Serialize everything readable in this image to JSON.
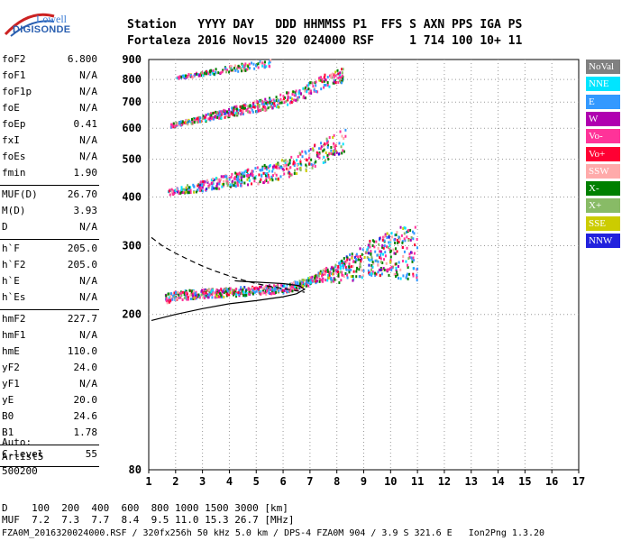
{
  "logo": {
    "lowell": "Lowell",
    "digisonde": "DIGISONDE"
  },
  "header": {
    "line1": "Station   YYYY DAY   DDD HHMMSS P1  FFS S AXN PPS IGA PS",
    "line2": "Fortaleza 2016 Nov15 320 024000 RSF     1 714 100 10+ 11"
  },
  "params": [
    {
      "name": "foF2",
      "value": "6.800"
    },
    {
      "name": "foF1",
      "value": "N/A"
    },
    {
      "name": "foF1p",
      "value": "N/A"
    },
    {
      "name": "foE",
      "value": "N/A"
    },
    {
      "name": "foEp",
      "value": "0.41"
    },
    {
      "name": "fxI",
      "value": "N/A"
    },
    {
      "name": "foEs",
      "value": "N/A"
    },
    {
      "name": "fmin",
      "value": "1.90"
    },
    {
      "name": "MUF(D)",
      "value": "26.70"
    },
    {
      "name": "M(D)",
      "value": "3.93"
    },
    {
      "name": "D",
      "value": "N/A"
    },
    {
      "name": "h`F",
      "value": "205.0"
    },
    {
      "name": "h`F2",
      "value": "205.0"
    },
    {
      "name": "h`E",
      "value": "N/A"
    },
    {
      "name": "h`Es",
      "value": "N/A"
    },
    {
      "name": "hmF2",
      "value": "227.7"
    },
    {
      "name": "hmF1",
      "value": "N/A"
    },
    {
      "name": "hmE",
      "value": "110.0"
    },
    {
      "name": "yF2",
      "value": "24.0"
    },
    {
      "name": "yF1",
      "value": "N/A"
    },
    {
      "name": "yE",
      "value": "20.0"
    },
    {
      "name": "B0",
      "value": "24.6"
    },
    {
      "name": "B1",
      "value": "1.78"
    },
    {
      "name": "C-level",
      "value": "55"
    }
  ],
  "autoscaling": {
    "label": "Auto:",
    "name": "Artist5",
    "code": "500200"
  },
  "legend": [
    {
      "label": "NoVal",
      "color": "#808080"
    },
    {
      "label": "NNE",
      "color": "#00e5ff"
    },
    {
      "label": "E",
      "color": "#3399ff"
    },
    {
      "label": "W",
      "color": "#b000b0"
    },
    {
      "label": "Vo-",
      "color": "#ff3399"
    },
    {
      "label": "Vo+",
      "color": "#ff0033"
    },
    {
      "label": "SSW",
      "color": "#ffaaaa"
    },
    {
      "label": "X-",
      "color": "#008000"
    },
    {
      "label": "X+",
      "color": "#88bb66"
    },
    {
      "label": "SSE",
      "color": "#cccc00"
    },
    {
      "label": "NNW",
      "color": "#2222dd"
    }
  ],
  "footer": {
    "line1": "D    100  200  400  600  800 1000 1500 3000 [km]",
    "line2": "MUF  7.2  7.3  7.7  8.4  9.5 11.0 15.3 26.7 [MHz]",
    "line3": "FZA0M_2016320024000.RSF / 320fx256h 50 kHz 5.0 km / DPS-4 FZA0M 904 / 3.9 S 321.6 E   Ion2Png 1.3.20"
  },
  "chart_data": {
    "type": "scatter",
    "title": "",
    "xlabel": "",
    "ylabel": "",
    "xlim": [
      1,
      17
    ],
    "ylim": [
      80,
      900
    ],
    "y_scale": "log",
    "x_ticks": [
      1,
      2,
      3,
      4,
      5,
      6,
      7,
      8,
      9,
      10,
      11,
      12,
      13,
      14,
      15,
      16,
      17
    ],
    "y_ticks": [
      80,
      200,
      300,
      400,
      500,
      600,
      700,
      800,
      900
    ],
    "grid": "dotted",
    "profile_curve": {
      "x": [
        1.1,
        2,
        3,
        4,
        5,
        6,
        6.5,
        6.8,
        6.6,
        6.0,
        5.5,
        5.0,
        4.5,
        4.2
      ],
      "y": [
        193,
        200,
        207,
        213,
        217,
        222,
        226,
        232,
        237,
        240,
        241,
        242,
        243,
        244
      ]
    },
    "profile_dashed": {
      "x": [
        1.1,
        1.5,
        2,
        2.5,
        3,
        3.5,
        4,
        4.5,
        5,
        5.5,
        6,
        6.5,
        6.8
      ],
      "y": [
        315,
        300,
        287,
        276,
        266,
        258,
        251,
        245,
        240,
        236,
        233,
        230,
        228
      ]
    },
    "traces": [
      {
        "name": "F2 first hop",
        "x": [
          1.6,
          2,
          3,
          4,
          5,
          6,
          6.5,
          7,
          7.5,
          8,
          8.5,
          9,
          9.5,
          10,
          11
        ],
        "y": [
          222,
          226,
          229,
          231,
          233,
          236,
          240,
          247,
          256,
          262,
          271,
          284,
          292,
          300,
          305
        ]
      },
      {
        "name": "F2 second hop",
        "x": [
          1.7,
          2.5,
          3.5,
          4.5,
          5.5,
          6.5,
          7.5,
          8.3
        ],
        "y": [
          415,
          425,
          440,
          455,
          470,
          495,
          535,
          575
        ]
      },
      {
        "name": "F2 third hop",
        "x": [
          1.8,
          2.5,
          3.5,
          4.5,
          5.5,
          6.5,
          7.5,
          8.2
        ],
        "y": [
          615,
          630,
          655,
          680,
          705,
          740,
          800,
          830
        ]
      },
      {
        "name": "F2 fourth hop",
        "x": [
          2,
          3,
          4,
          5,
          5.5
        ],
        "y": [
          815,
          835,
          860,
          880,
          895
        ]
      }
    ]
  }
}
